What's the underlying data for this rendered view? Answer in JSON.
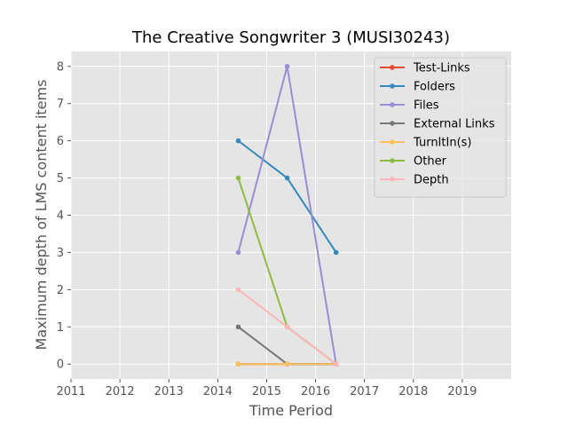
{
  "chart_data": {
    "type": "line",
    "title": "The Creative Songwriter 3 (MUSI30243)",
    "xlabel": "Time Period",
    "ylabel": "Maximum depth of LMS content items",
    "xlim": [
      2011,
      2020
    ],
    "ylim": [
      -0.4,
      8.4
    ],
    "xticks": [
      2011,
      2012,
      2013,
      2014,
      2015,
      2016,
      2017,
      2018,
      2019
    ],
    "yticks": [
      0,
      1,
      2,
      3,
      4,
      5,
      6,
      7,
      8
    ],
    "grid": true,
    "legend_position": "top-right",
    "x": [
      2014.42,
      2015.42,
      2016.42
    ],
    "series": [
      {
        "name": "Test-Links",
        "color": "#E24A33",
        "values": [
          0,
          0,
          0
        ]
      },
      {
        "name": "Folders",
        "color": "#348ABD",
        "values": [
          6,
          5,
          3
        ]
      },
      {
        "name": "Files",
        "color": "#988ED5",
        "values": [
          3,
          8,
          0
        ]
      },
      {
        "name": "External Links",
        "color": "#777777",
        "values": [
          1,
          0,
          0
        ]
      },
      {
        "name": "TurnItIn(s)",
        "color": "#FBC15E",
        "values": [
          0,
          0,
          0
        ]
      },
      {
        "name": "Other",
        "color": "#8EBA42",
        "values": [
          5,
          1,
          0
        ]
      },
      {
        "name": "Depth",
        "color": "#FFB5B8",
        "values": [
          2,
          1,
          0
        ]
      }
    ]
  }
}
